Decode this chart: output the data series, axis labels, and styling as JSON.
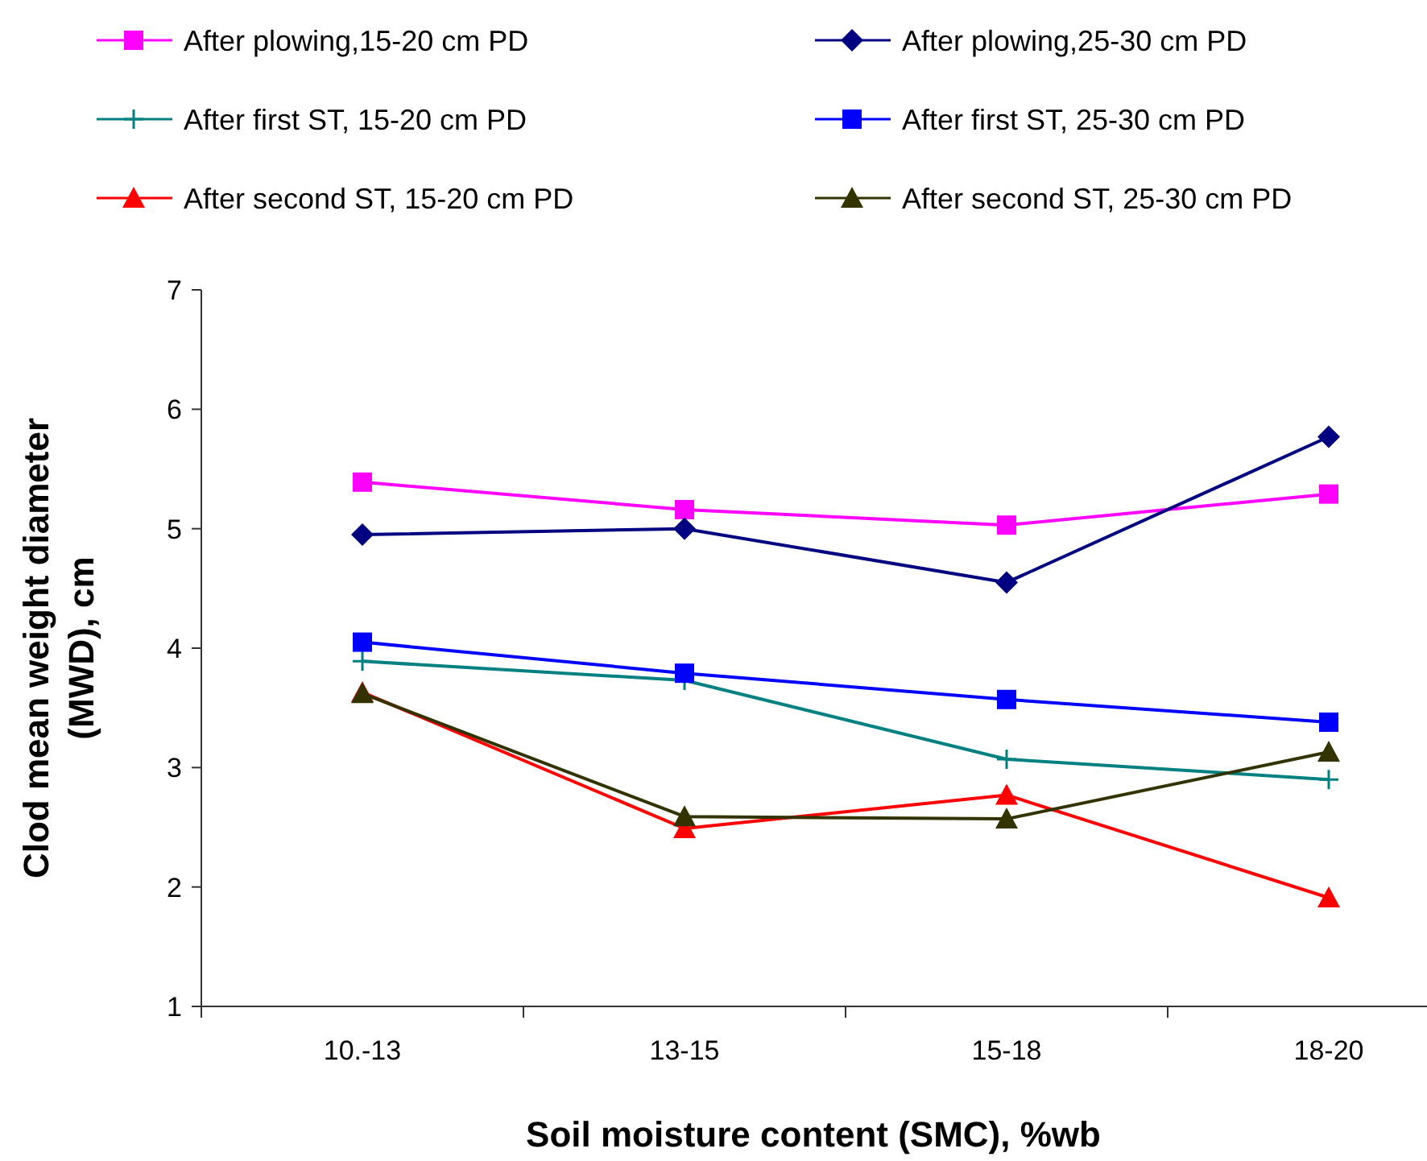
{
  "chart_data": {
    "type": "line",
    "xlabel": "Soil moisture content (SMC), %wb",
    "ylabel": "Clod mean weight diameter (MWD), cm",
    "categories": [
      "10.-13",
      "13-15",
      "15-18",
      "18-20"
    ],
    "ylim": [
      1,
      7
    ],
    "yticks": [
      1,
      2,
      3,
      4,
      5,
      6,
      7
    ],
    "grid": false,
    "legend": "top",
    "series": [
      {
        "name": "After plowing,15-20 cm PD",
        "color": "#ff00ff",
        "marker": "square",
        "values": [
          5.39,
          5.16,
          5.03,
          5.29
        ]
      },
      {
        "name": "After plowing,25-30 cm PD",
        "color": "#000080",
        "marker": "diamond",
        "values": [
          4.95,
          5.0,
          4.55,
          5.77
        ]
      },
      {
        "name": "After first ST, 15-20 cm PD",
        "color": "#008080",
        "marker": "cross",
        "values": [
          3.89,
          3.73,
          3.07,
          2.9
        ]
      },
      {
        "name": "After first ST, 25-30 cm PD",
        "color": "#0000ff",
        "marker": "square",
        "values": [
          4.05,
          3.79,
          3.57,
          3.38
        ]
      },
      {
        "name": "After second ST, 15-20 cm PD",
        "color": "#ff0000",
        "marker": "triangle",
        "values": [
          3.63,
          2.49,
          2.77,
          1.91
        ]
      },
      {
        "name": "After second ST, 25-30 cm PD",
        "color": "#333300",
        "marker": "triangle",
        "values": [
          3.62,
          2.59,
          2.57,
          3.13
        ]
      }
    ]
  }
}
